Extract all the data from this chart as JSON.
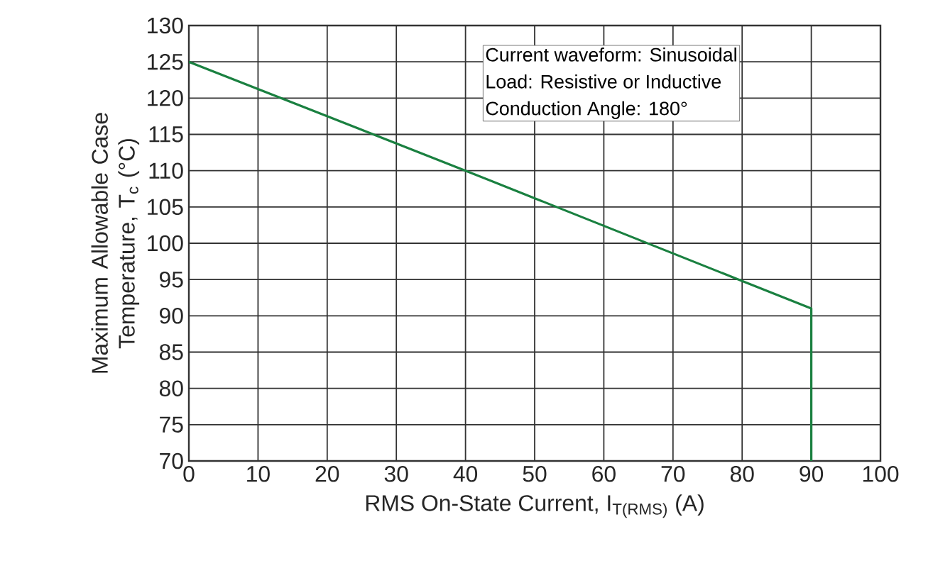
{
  "chart_data": {
    "type": "line",
    "xlabel": "RMS On-State Current, I$_{T(RMS)}$ (A)",
    "ylabel": "Maximum Allowable Case Temperature, T$_{c}$ (°C)",
    "annotations": [
      "Current waveform: Sinusoidal",
      "Load: Resistive or Inductive",
      "Conduction Angle: 180°"
    ],
    "x": [
      0,
      40,
      80,
      90,
      90
    ],
    "series": [
      {
        "color": "#1a8040",
        "values": [
          125,
          110,
          94.8,
          91,
          70
        ]
      }
    ],
    "xlim": [
      0,
      100
    ],
    "ylim": [
      70,
      130
    ],
    "xticks": [
      0,
      10,
      20,
      30,
      40,
      50,
      60,
      70,
      80,
      90,
      100
    ],
    "yticks": [
      70,
      75,
      80,
      85,
      90,
      95,
      100,
      105,
      110,
      115,
      120,
      125,
      130
    ],
    "grid": true,
    "marker": "none",
    "line_style": "solid"
  }
}
